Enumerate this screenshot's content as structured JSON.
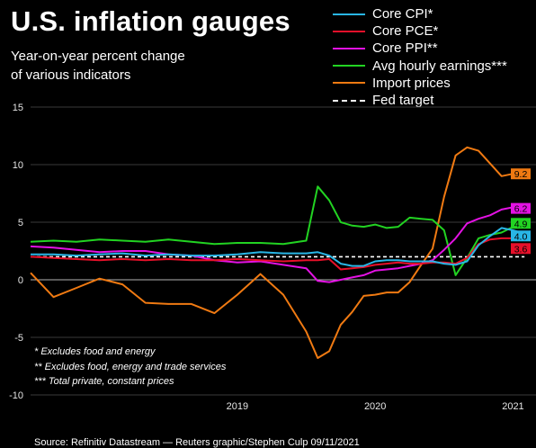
{
  "title": "U.S. inflation gauges",
  "subtitle_line1": "Year-on-year percent change",
  "subtitle_line2": "of various indicators",
  "notes": [
    "* Excludes food and energy",
    "** Excludes food, energy and trade services",
    "*** Total private, constant prices"
  ],
  "source": "Source: Refinitiv Datastream — Reuters graphic/Stephen Culp 09/11/2021",
  "chart_data": {
    "type": "line",
    "x_start": "2018-01",
    "x_end": "2021-09",
    "ylim": [
      -10,
      15
    ],
    "yticks": [
      "15",
      "10",
      "5",
      "0",
      "-5",
      "-10"
    ],
    "xticks": [
      {
        "label": "2019",
        "x": "2019-07"
      },
      {
        "label": "2020",
        "x": "2020-07"
      },
      {
        "label": "2021",
        "x": "2021-07"
      }
    ],
    "legend_position": "top-right",
    "series": [
      {
        "name": "Core CPI*",
        "color": "#29b6e6",
        "end_label": "4.0",
        "x": [
          "2018-01",
          "2018-03",
          "2018-05",
          "2018-07",
          "2018-09",
          "2018-11",
          "2019-01",
          "2019-03",
          "2019-05",
          "2019-07",
          "2019-09",
          "2019-11",
          "2020-01",
          "2020-02",
          "2020-03",
          "2020-04",
          "2020-05",
          "2020-06",
          "2020-07",
          "2020-08",
          "2020-09",
          "2020-10",
          "2020-11",
          "2020-12",
          "2021-01",
          "2021-02",
          "2021-03",
          "2021-04",
          "2021-05",
          "2021-06",
          "2021-07",
          "2021-08"
        ],
        "values": [
          2.2,
          2.2,
          2.1,
          2.2,
          2.3,
          2.1,
          2.2,
          2.1,
          2.1,
          2.2,
          2.4,
          2.3,
          2.3,
          2.4,
          2.1,
          1.4,
          1.2,
          1.2,
          1.6,
          1.7,
          1.7,
          1.6,
          1.6,
          1.6,
          1.4,
          1.3,
          1.6,
          3.0,
          3.8,
          4.5,
          4.3,
          4.0
        ]
      },
      {
        "name": "Core PCE*",
        "color": "#e8102a",
        "end_label": "3.6",
        "x": [
          "2018-01",
          "2018-03",
          "2018-05",
          "2018-07",
          "2018-09",
          "2018-11",
          "2019-01",
          "2019-03",
          "2019-05",
          "2019-07",
          "2019-09",
          "2019-11",
          "2020-01",
          "2020-02",
          "2020-03",
          "2020-04",
          "2020-05",
          "2020-06",
          "2020-07",
          "2020-08",
          "2020-09",
          "2020-10",
          "2020-11",
          "2020-12",
          "2021-01",
          "2021-02",
          "2021-03",
          "2021-04",
          "2021-05",
          "2021-06",
          "2021-07",
          "2021-08"
        ],
        "values": [
          2.0,
          1.9,
          1.8,
          1.7,
          1.8,
          1.7,
          1.8,
          1.7,
          1.7,
          1.8,
          1.7,
          1.6,
          1.7,
          1.7,
          1.8,
          0.9,
          1.0,
          1.1,
          1.3,
          1.4,
          1.5,
          1.4,
          1.4,
          1.5,
          1.5,
          1.4,
          1.9,
          3.1,
          3.5,
          3.6,
          3.6,
          3.6
        ]
      },
      {
        "name": "Core PPI**",
        "color": "#e312e3",
        "end_label": "6.2",
        "x": [
          "2018-01",
          "2018-03",
          "2018-05",
          "2018-07",
          "2018-09",
          "2018-11",
          "2019-01",
          "2019-03",
          "2019-05",
          "2019-07",
          "2019-09",
          "2019-11",
          "2020-01",
          "2020-02",
          "2020-03",
          "2020-04",
          "2020-05",
          "2020-06",
          "2020-07",
          "2020-08",
          "2020-09",
          "2020-10",
          "2020-11",
          "2020-12",
          "2021-01",
          "2021-02",
          "2021-03",
          "2021-04",
          "2021-05",
          "2021-06",
          "2021-07",
          "2021-08"
        ],
        "values": [
          2.9,
          2.8,
          2.6,
          2.4,
          2.5,
          2.5,
          2.2,
          2.1,
          1.7,
          1.5,
          1.6,
          1.3,
          1.0,
          -0.1,
          -0.2,
          0.0,
          0.2,
          0.4,
          0.8,
          0.9,
          1.0,
          1.2,
          1.4,
          1.7,
          2.6,
          3.6,
          4.9,
          5.3,
          5.6,
          6.1,
          6.3,
          6.2
        ]
      },
      {
        "name": "Avg hourly earnings***",
        "color": "#22d322",
        "end_label": "4.9",
        "x": [
          "2018-01",
          "2018-03",
          "2018-05",
          "2018-07",
          "2018-09",
          "2018-11",
          "2019-01",
          "2019-03",
          "2019-05",
          "2019-07",
          "2019-09",
          "2019-11",
          "2020-01",
          "2020-02",
          "2020-03",
          "2020-04",
          "2020-05",
          "2020-06",
          "2020-07",
          "2020-08",
          "2020-09",
          "2020-10",
          "2020-11",
          "2020-12",
          "2021-01",
          "2021-02",
          "2021-03",
          "2021-04",
          "2021-05",
          "2021-06",
          "2021-07",
          "2021-08"
        ],
        "values": [
          3.3,
          3.4,
          3.3,
          3.5,
          3.4,
          3.3,
          3.5,
          3.3,
          3.1,
          3.2,
          3.2,
          3.1,
          3.4,
          8.1,
          6.9,
          5.0,
          4.7,
          4.6,
          4.8,
          4.5,
          4.6,
          5.4,
          5.3,
          5.2,
          4.3,
          0.4,
          1.9,
          3.6,
          3.9,
          4.1,
          4.6,
          4.9
        ]
      },
      {
        "name": "Import prices",
        "color": "#f07a12",
        "end_label": "9.2",
        "x": [
          "2018-01",
          "2018-03",
          "2018-05",
          "2018-07",
          "2018-09",
          "2018-11",
          "2019-01",
          "2019-03",
          "2019-05",
          "2019-07",
          "2019-09",
          "2019-11",
          "2020-01",
          "2020-02",
          "2020-03",
          "2020-04",
          "2020-05",
          "2020-06",
          "2020-07",
          "2020-08",
          "2020-09",
          "2020-10",
          "2020-11",
          "2020-12",
          "2021-01",
          "2021-02",
          "2021-03",
          "2021-04",
          "2021-05",
          "2021-06",
          "2021-07",
          "2021-08"
        ],
        "values": [
          0.6,
          -1.5,
          -0.7,
          0.1,
          -0.4,
          -2.0,
          -2.1,
          -2.1,
          -2.9,
          -1.3,
          0.5,
          -1.3,
          -4.5,
          -6.8,
          -6.2,
          -3.9,
          -2.8,
          -1.4,
          -1.3,
          -1.1,
          -1.1,
          -0.2,
          1.3,
          2.7,
          7.2,
          10.8,
          11.5,
          11.2,
          10.1,
          9.0,
          9.2,
          9.2
        ]
      },
      {
        "name": "Fed target",
        "color": "#ffffff",
        "dashed": true,
        "x": [
          "2018-01",
          "2021-08"
        ],
        "values": [
          2.0,
          2.0
        ]
      }
    ]
  }
}
